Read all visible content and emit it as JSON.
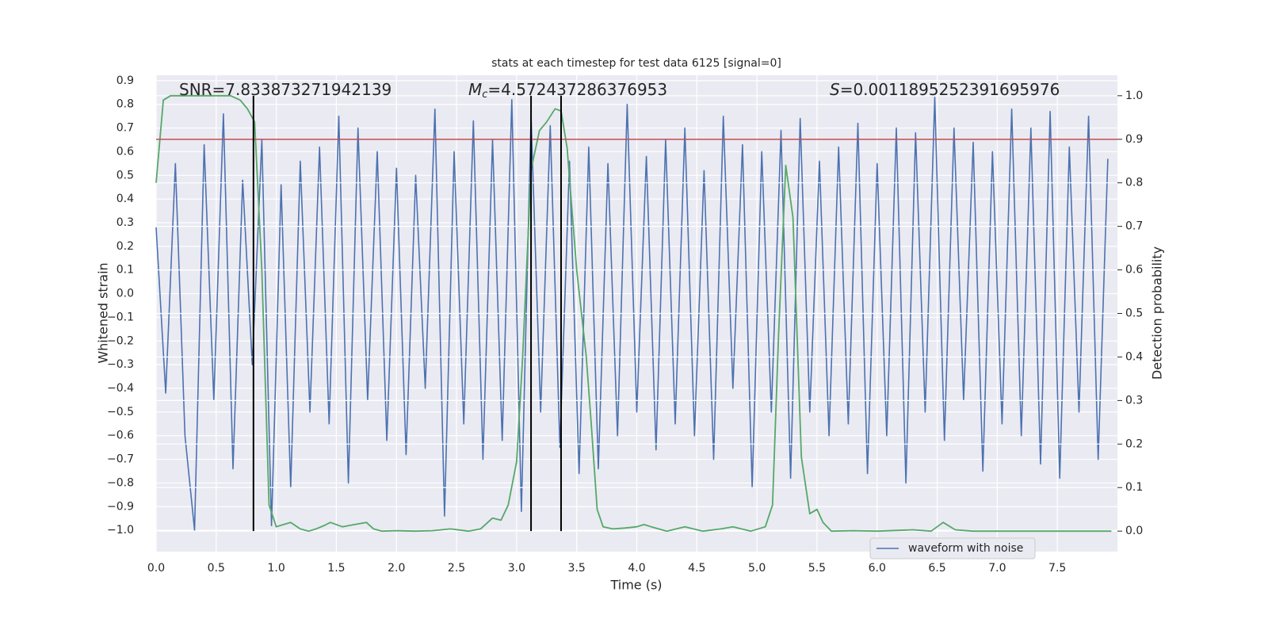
{
  "chart_data": {
    "type": "line",
    "title": "stats at each timestep for test data 6125 [signal=0]",
    "xlabel": "Time (s)",
    "ylabel": "Whitened strain",
    "y2label": "Detection probability",
    "xlim": [
      0,
      8.0
    ],
    "xticks": [
      {
        "value": 0,
        "label": "0.0"
      },
      0.5,
      {
        "value": 1,
        "label": "1.0"
      },
      1.5,
      {
        "value": 2,
        "label": "2.0"
      },
      2.5,
      {
        "value": 3,
        "label": "3.0"
      },
      3.5,
      {
        "value": 4,
        "label": "4.0"
      },
      4.5,
      {
        "value": 5,
        "label": "5.0"
      },
      5.5,
      {
        "value": 6,
        "label": "6.0"
      },
      6.5,
      {
        "value": 7,
        "label": "7.0"
      },
      7.5
    ],
    "ylim": [
      -1.09,
      0.923
    ],
    "yticks": [
      {
        "value": -1.0,
        "label": "−1.0"
      },
      {
        "value": -0.9,
        "label": "−0.9"
      },
      {
        "value": -0.8,
        "label": "−0.8"
      },
      {
        "value": -0.7,
        "label": "−0.7"
      },
      {
        "value": -0.6,
        "label": "−0.6"
      },
      {
        "value": -0.5,
        "label": "−0.5"
      },
      {
        "value": -0.4,
        "label": "−0.4"
      },
      {
        "value": -0.3,
        "label": "−0.3"
      },
      {
        "value": -0.2,
        "label": "−0.2"
      },
      {
        "value": -0.1,
        "label": "−0.1"
      },
      {
        "value": 0,
        "label": "0.0"
      },
      0.1,
      0.2,
      0.3,
      0.4,
      0.5,
      0.6,
      0.7,
      0.8,
      0.9
    ],
    "y2lim": [
      -0.047,
      1.047
    ],
    "y2ticks": [
      {
        "value": 0,
        "label": "0.0"
      },
      0.1,
      0.2,
      0.3,
      0.4,
      0.5,
      0.6,
      0.7,
      0.8,
      0.9,
      {
        "value": 1,
        "label": "1.0"
      }
    ],
    "grid": true,
    "legend": "lower right",
    "series": [
      {
        "name": "waveform with noise",
        "color": "#4c72b0",
        "x": [
          0,
          0.08,
          0.16,
          0.24,
          0.32,
          0.4,
          0.48,
          0.56,
          0.64,
          0.72,
          0.8,
          0.88,
          0.96,
          1.04,
          1.12,
          1.2,
          1.28,
          1.36,
          1.44,
          1.52,
          1.6,
          1.68,
          1.76,
          1.84,
          1.92,
          2.0,
          2.08,
          2.16,
          2.24,
          2.32,
          2.4,
          2.48,
          2.56,
          2.64,
          2.72,
          2.8,
          2.88,
          2.96,
          3.04,
          3.12,
          3.2,
          3.28,
          3.36,
          3.44,
          3.52,
          3.6,
          3.68,
          3.76,
          3.84,
          3.92,
          4.0,
          4.08,
          4.16,
          4.24,
          4.32,
          4.4,
          4.48,
          4.56,
          4.64,
          4.72,
          4.8,
          4.88,
          4.96,
          5.04,
          5.12,
          5.2,
          5.28,
          5.36,
          5.44,
          5.52,
          5.6,
          5.68,
          5.76,
          5.84,
          5.92,
          6.0,
          6.08,
          6.16,
          6.24,
          6.32,
          6.4,
          6.48,
          6.56,
          6.64,
          6.72,
          6.8,
          6.88,
          6.96,
          7.04,
          7.12,
          7.2,
          7.28,
          7.36,
          7.44,
          7.52,
          7.6,
          7.68,
          7.76,
          7.84,
          7.92
        ],
        "values": [
          0.28,
          -0.42,
          0.55,
          -0.6,
          -1.0,
          0.63,
          -0.45,
          0.76,
          -0.74,
          0.48,
          -0.3,
          0.65,
          -0.98,
          0.46,
          -0.82,
          0.56,
          -0.5,
          0.62,
          -0.55,
          0.75,
          -0.8,
          0.7,
          -0.45,
          0.6,
          -0.62,
          0.53,
          -0.68,
          0.5,
          -0.4,
          0.78,
          -0.94,
          0.6,
          -0.55,
          0.73,
          -0.7,
          0.65,
          -0.62,
          0.82,
          -0.92,
          0.75,
          -0.5,
          0.71,
          -0.65,
          0.56,
          -0.76,
          0.62,
          -0.74,
          0.55,
          -0.6,
          0.8,
          -0.5,
          0.58,
          -0.66,
          0.65,
          -0.55,
          0.7,
          -0.6,
          0.52,
          -0.7,
          0.75,
          -0.4,
          0.63,
          -0.82,
          0.6,
          -0.5,
          0.69,
          -0.78,
          0.74,
          -0.5,
          0.56,
          -0.6,
          0.62,
          -0.55,
          0.72,
          -0.76,
          0.55,
          -0.6,
          0.7,
          -0.8,
          0.68,
          -0.5,
          0.83,
          -0.62,
          0.7,
          -0.45,
          0.64,
          -0.75,
          0.6,
          -0.55,
          0.78,
          -0.6,
          0.7,
          -0.72,
          0.77,
          -0.78,
          0.62,
          -0.5,
          0.75,
          -0.7,
          0.57
        ]
      },
      {
        "color": "#55a868",
        "axis": "y2",
        "x": [
          0,
          0.06,
          0.12,
          0.3,
          0.5,
          0.62,
          0.7,
          0.76,
          0.82,
          0.88,
          0.94,
          1.0,
          1.06,
          1.12,
          1.2,
          1.27,
          1.33,
          1.4,
          1.45,
          1.55,
          1.65,
          1.75,
          1.81,
          1.88,
          2.0,
          2.15,
          2.3,
          2.45,
          2.6,
          2.7,
          2.8,
          2.87,
          2.93,
          3.0,
          3.05,
          3.12,
          3.19,
          3.25,
          3.32,
          3.37,
          3.42,
          3.5,
          3.58,
          3.62,
          3.67,
          3.72,
          3.8,
          3.9,
          4.0,
          4.06,
          4.12,
          4.25,
          4.4,
          4.55,
          4.7,
          4.8,
          4.95,
          5.07,
          5.13,
          5.18,
          5.24,
          5.3,
          5.37,
          5.44,
          5.5,
          5.55,
          5.62,
          5.8,
          6.0,
          6.3,
          6.45,
          6.55,
          6.65,
          6.8,
          7.2,
          7.6,
          7.95
        ],
        "values": [
          0.8,
          0.99,
          1.0,
          1.0,
          1.0,
          1.0,
          0.99,
          0.97,
          0.94,
          0.6,
          0.06,
          0.01,
          0.015,
          0.02,
          0.005,
          0.0,
          0.005,
          0.013,
          0.02,
          0.01,
          0.015,
          0.02,
          0.005,
          0.0,
          0.001,
          0.0,
          0.001,
          0.005,
          0.0,
          0.005,
          0.03,
          0.025,
          0.06,
          0.16,
          0.4,
          0.83,
          0.92,
          0.94,
          0.97,
          0.965,
          0.88,
          0.6,
          0.4,
          0.25,
          0.05,
          0.01,
          0.005,
          0.007,
          0.01,
          0.015,
          0.01,
          0.0,
          0.01,
          0.0,
          0.005,
          0.01,
          0.0,
          0.01,
          0.06,
          0.45,
          0.84,
          0.72,
          0.17,
          0.04,
          0.05,
          0.02,
          0.0,
          0.001,
          0.0,
          0.003,
          0.0,
          0.02,
          0.003,
          0.0,
          0.0,
          0.0,
          0.0
        ]
      }
    ],
    "hline": {
      "y2": 0.9,
      "color": "#c44e52"
    },
    "vlines": {
      "x": [
        0.81,
        3.12,
        3.37
      ],
      "y2": [
        0,
        1
      ],
      "color": "#000000"
    },
    "annotations": [
      {
        "text": "SNR=7.833873271942139"
      },
      {
        "symbol": "M",
        "subscript": "c",
        "text": "=4.572437286376953"
      },
      {
        "symbol": "S",
        "text": "=0.0011895252391695976"
      }
    ]
  }
}
